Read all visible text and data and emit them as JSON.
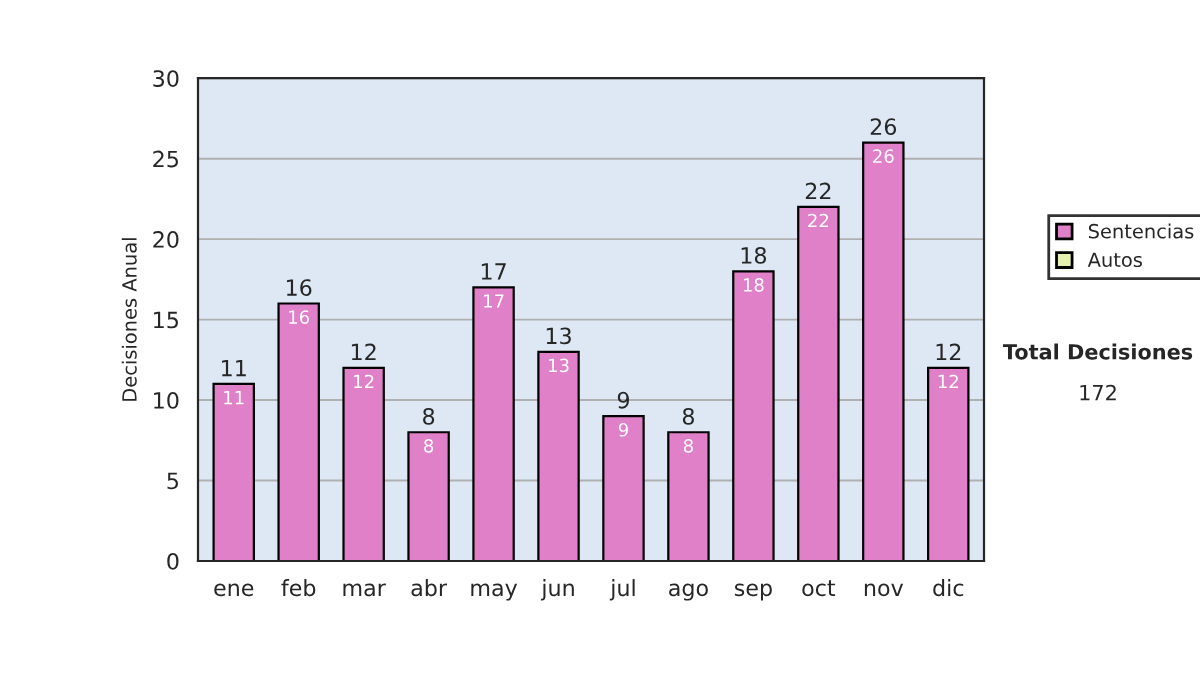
{
  "chart_data": {
    "type": "bar",
    "ylabel": "Decisiones Anual",
    "categories": [
      "ene",
      "feb",
      "mar",
      "abr",
      "may",
      "jun",
      "jul",
      "ago",
      "sep",
      "oct",
      "nov",
      "dic"
    ],
    "series": [
      {
        "name": "Sentencias",
        "color": "#e080c8",
        "values": [
          11,
          16,
          12,
          8,
          17,
          13,
          9,
          8,
          18,
          22,
          26,
          12
        ],
        "value_labels": [
          "11",
          "16",
          "12",
          "8",
          "17",
          "13",
          "9",
          "8",
          "18",
          "22",
          "26",
          "12"
        ]
      },
      {
        "name": "Autos",
        "color": "#e6f0b0",
        "values": [
          null,
          null,
          null,
          null,
          null,
          null,
          null,
          null,
          null,
          null,
          null,
          null
        ]
      }
    ],
    "stacked": true,
    "totals": [
      "11",
      "16",
      "12",
      "8",
      "17",
      "13",
      "9",
      "8",
      "18",
      "22",
      "26",
      "12"
    ],
    "ylim": [
      0,
      30
    ],
    "yticks": [
      0,
      5,
      10,
      15,
      20,
      25,
      30
    ],
    "grid": "y",
    "legend": "right",
    "annotations": [
      "Total Decisiones",
      "172"
    ]
  }
}
